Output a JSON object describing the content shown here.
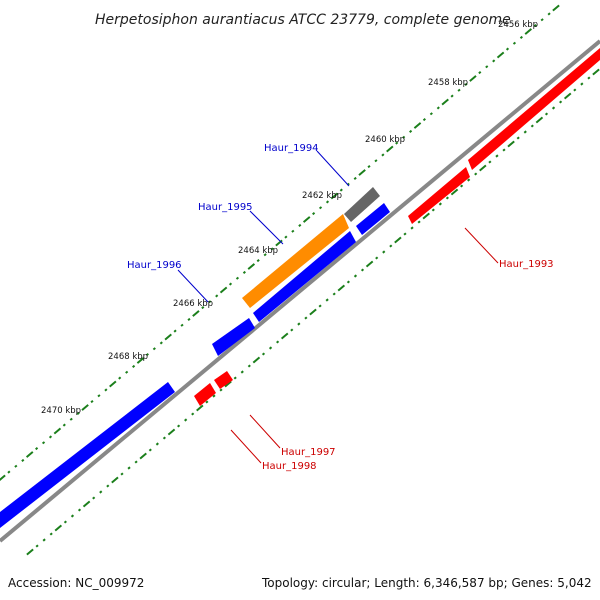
{
  "title": "Herpetosiphon aurantiacus ATCC 23779, complete genome",
  "footer": {
    "accession": "Accession: NC_009972",
    "stats": "Topology: circular; Length: 6,346,587 bp; Genes: 5,042"
  },
  "colors": {
    "backbone": "#888888",
    "tick_green": "#1b7f1b",
    "gene_blue": "#0000ff",
    "gene_red": "#ff0000",
    "gene_orange": "#ff8c00",
    "gene_gray": "#666666",
    "label_blue": "#0000cc",
    "label_red": "#cc0000"
  },
  "tick_labels": [
    "2456 kbp",
    "2458 kbp",
    "2460 kbp",
    "2462 kbp",
    "2464 kbp",
    "2466 kbp",
    "2468 kbp",
    "2470 kbp"
  ],
  "genes": [
    {
      "name": "Haur_1993",
      "color": "red"
    },
    {
      "name": "Haur_1994",
      "color": "gray"
    },
    {
      "name": "Haur_1995",
      "color": "orange"
    },
    {
      "name": "Haur_1996",
      "color": "blue"
    },
    {
      "name": "Haur_1997",
      "color": "red"
    },
    {
      "name": "Haur_1998",
      "color": "red"
    }
  ]
}
